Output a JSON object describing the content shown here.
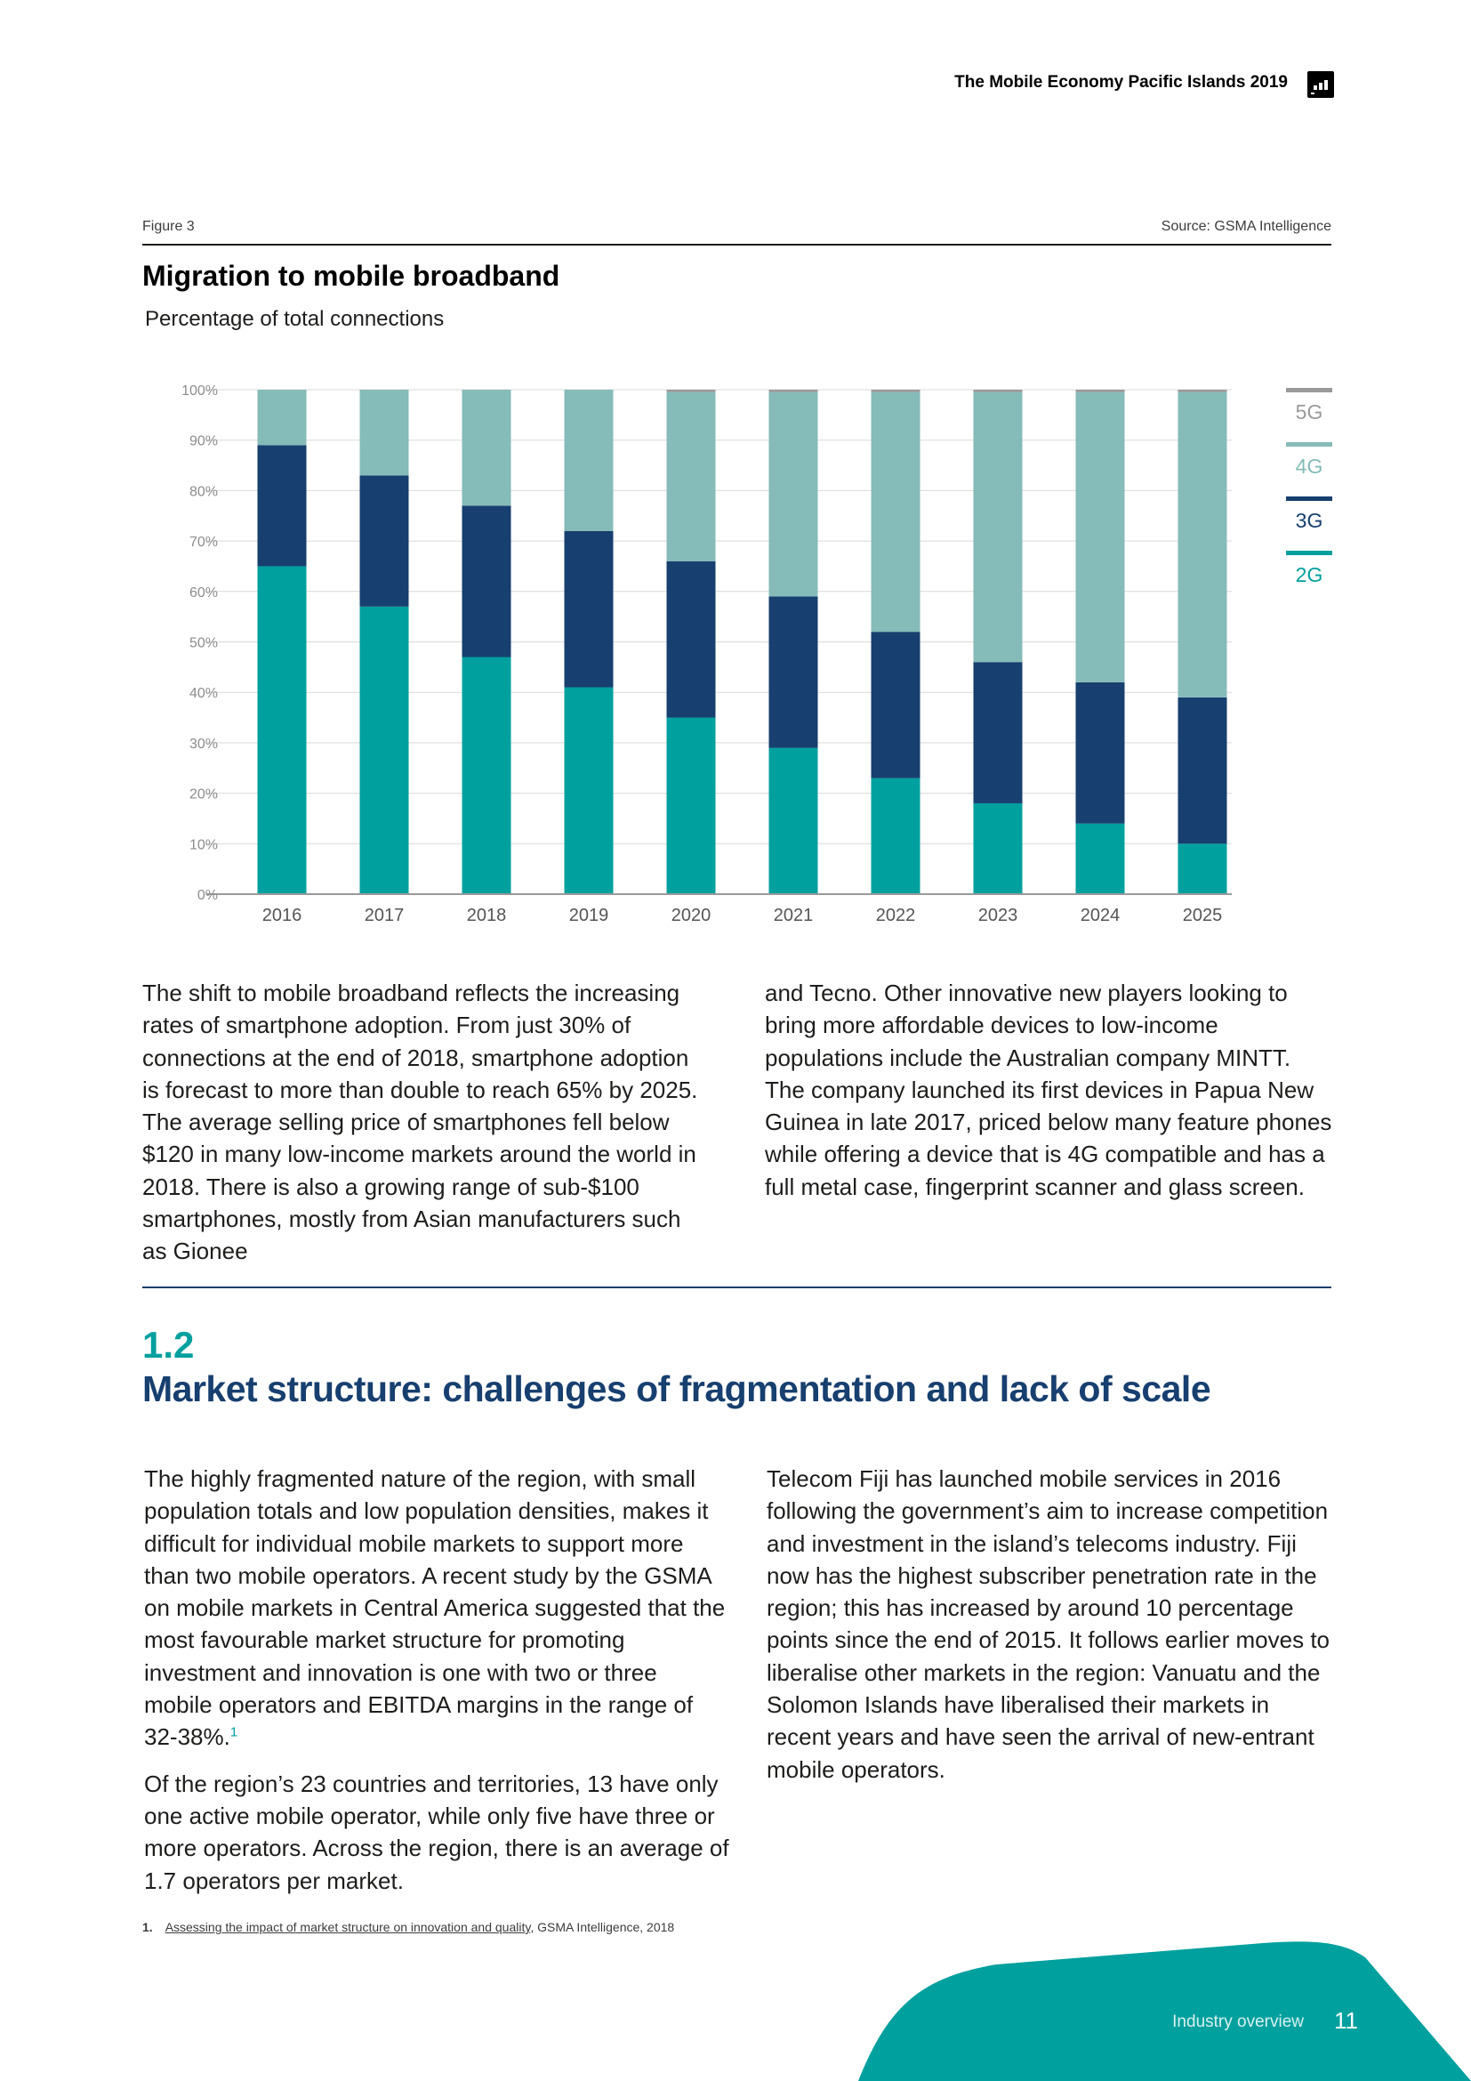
{
  "header": {
    "publication_title": "The Mobile Economy Pacific Islands 2019",
    "logo_icon": "gsma-logo-icon"
  },
  "figure": {
    "label": "Figure 3",
    "source": "Source: GSMA Intelligence",
    "title": "Migration to mobile broadband",
    "subtitle": "Percentage of total connections"
  },
  "chart_data": {
    "type": "bar",
    "stacked": true,
    "title": "Migration to mobile broadband",
    "subtitle": "Percentage of total connections",
    "categories": [
      "2016",
      "2017",
      "2018",
      "2019",
      "2020",
      "2021",
      "2022",
      "2023",
      "2024",
      "2025"
    ],
    "series": [
      {
        "name": "2G",
        "color": "#00a09e",
        "values": [
          65,
          57,
          47,
          41,
          35,
          29,
          23,
          18,
          14,
          10
        ]
      },
      {
        "name": "3G",
        "color": "#173f6f",
        "values": [
          24,
          26,
          30,
          31,
          31,
          30,
          29,
          28,
          28,
          29
        ]
      },
      {
        "name": "4G",
        "color": "#85bbb8",
        "values": [
          11,
          17,
          23,
          28,
          33.5,
          40.5,
          47.5,
          53.5,
          57.5,
          60.5
        ]
      },
      {
        "name": "5G",
        "color": "#9a9a9a",
        "values": [
          0,
          0,
          0,
          0,
          0.5,
          0.5,
          0.5,
          0.5,
          0.5,
          0.5
        ]
      }
    ],
    "yticks": [
      "0%",
      "10%",
      "20%",
      "30%",
      "40%",
      "50%",
      "60%",
      "70%",
      "80%",
      "90%",
      "100%"
    ],
    "ylim": [
      0,
      100
    ],
    "xlabel": "",
    "ylabel": "",
    "grid": true,
    "legend_position": "right",
    "legend": [
      {
        "name": "5G",
        "color": "#9a9a9a"
      },
      {
        "name": "4G",
        "color": "#85bbb8"
      },
      {
        "name": "3G",
        "color": "#173f6f"
      },
      {
        "name": "2G",
        "color": "#00a09e"
      }
    ]
  },
  "intro": {
    "col1": "The shift to mobile broadband reflects the increasing rates of smartphone adoption. From just 30% of connections at the end of 2018, smartphone adoption is forecast to more than double to reach 65% by 2025. The average selling price of smartphones fell below $120 in many low-income markets around the world in 2018. There is also a growing range of sub-$100 smartphones, mostly from Asian manufacturers such as Gionee",
    "col2": "and Tecno. Other innovative new players looking to bring more affordable devices to low-income populations include the Australian company MINTT. The company launched its first devices in Papua New Guinea in late 2017, priced below many feature phones while offering a device that is 4G compatible and has a full metal case, fingerprint scanner and glass screen."
  },
  "section": {
    "number": "1.2",
    "title": "Market structure: challenges of fragmentation and lack of scale",
    "col1_p1": "The highly fragmented nature of the region, with small population totals and low population densities, makes it difficult for individual mobile markets to support more than two mobile operators. A recent study by the GSMA on mobile markets in Central America suggested that the most favourable market structure for promoting investment and innovation is one with two or three mobile operators and EBITDA margins in the range of 32-38%.",
    "col1_p1_ref": "1",
    "col1_p2": "Of the region’s 23 countries and territories, 13 have only one active mobile operator, while only five have three or more operators. Across the region, there is an average of 1.7 operators per market.",
    "col2_p1": "Telecom Fiji has launched mobile services in 2016 following the government’s aim to increase competition and investment in the island’s telecoms industry. Fiji now has the highest subscriber penetration rate in the region; this has increased by around 10 percentage points since the end of 2015. It follows earlier moves to liberalise other markets in the region: Vanuatu and the Solomon Islands have liberalised their markets in recent years and have seen the arrival of new-entrant mobile operators."
  },
  "footnote": {
    "number": "1.",
    "link_text": "Assessing the impact of market structure on innovation and quality",
    "rest": ", GSMA Intelligence, 2018"
  },
  "footer": {
    "section_name": "Industry overview",
    "page_number": "11",
    "accent_color": "#00a09e"
  }
}
